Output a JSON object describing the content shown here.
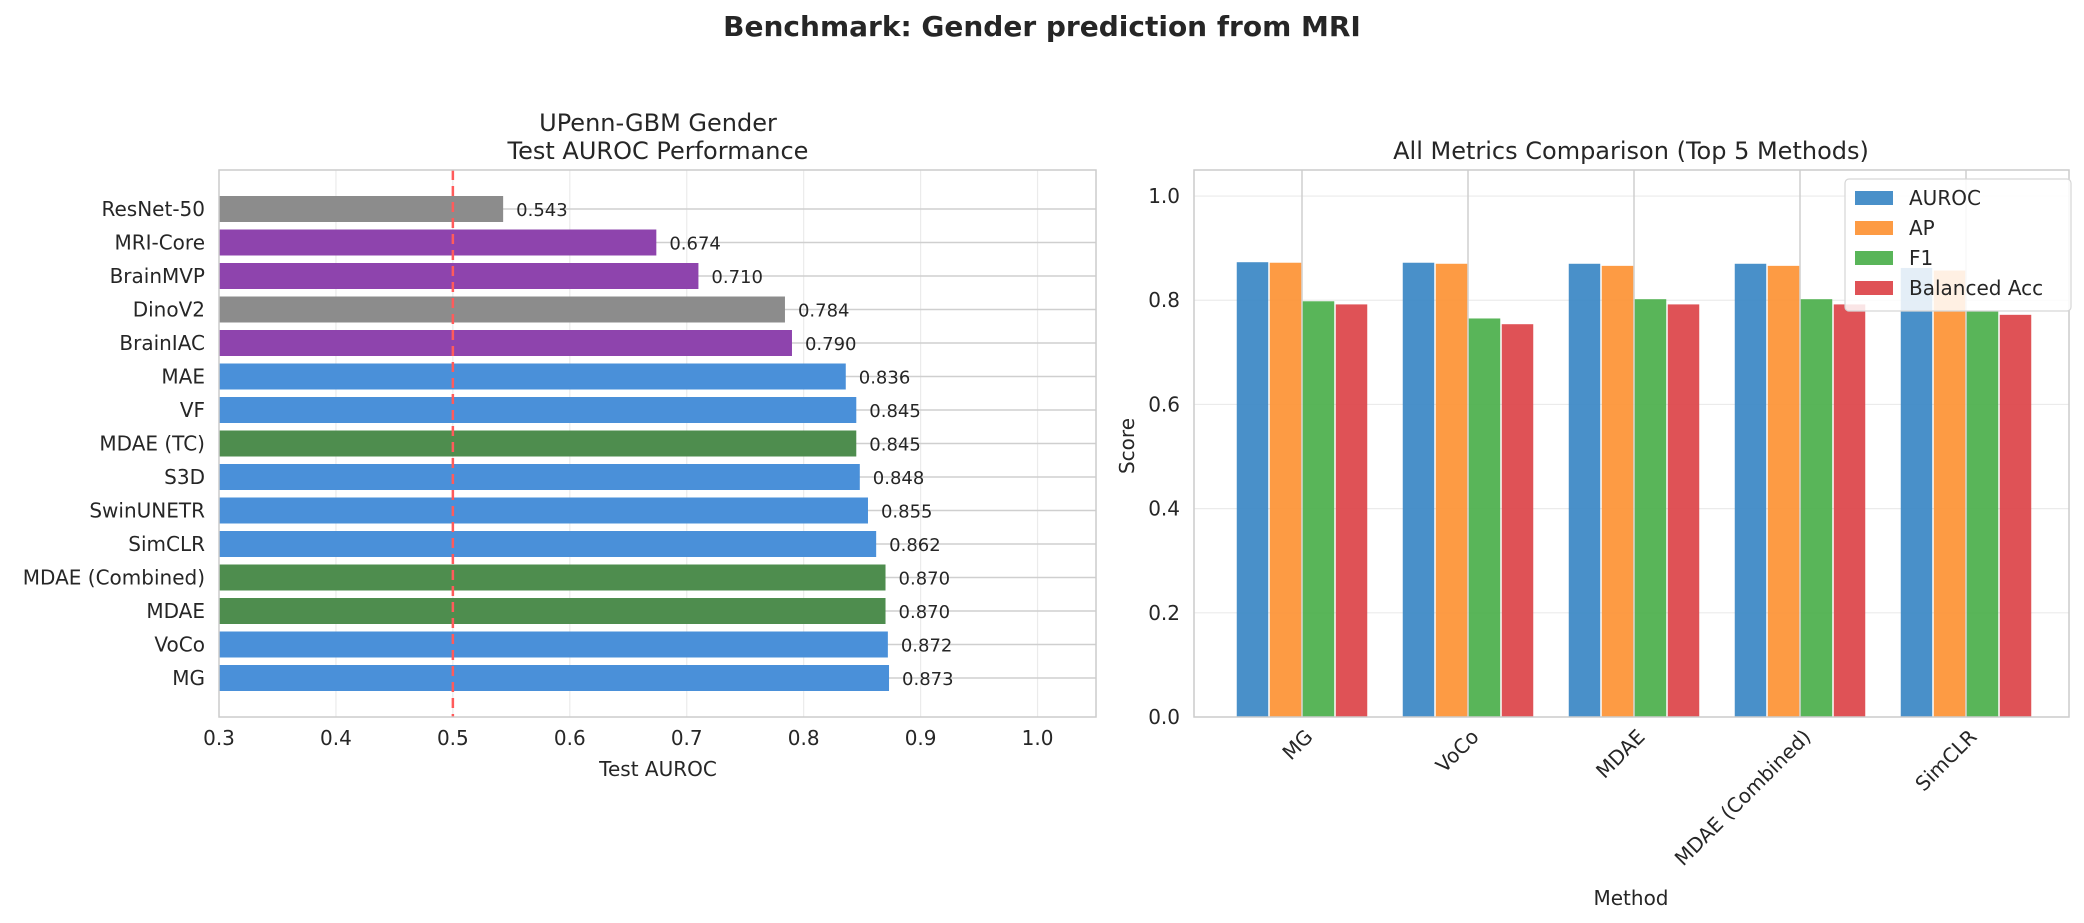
{
  "figure": {
    "title": "Benchmark: Gender prediction from MRI"
  },
  "chart_data": [
    {
      "type": "bar",
      "orientation": "horizontal",
      "title": "UPenn-GBM Gender\nTest AUROC Performance",
      "xlabel": "Test AUROC",
      "ylabel": "",
      "xlim": [
        0.3,
        1.05
      ],
      "xticks": [
        0.3,
        0.4,
        0.5,
        0.6,
        0.7,
        0.8,
        0.9,
        1.0
      ],
      "xtick_labels": [
        "0.3",
        "0.4",
        "0.5",
        "0.6",
        "0.7",
        "0.8",
        "0.9",
        "1.0"
      ],
      "grid": true,
      "reference_line": {
        "x": 0.5,
        "color": "#ff5b5b",
        "style": "dashed"
      },
      "categories": [
        "MG",
        "VoCo",
        "MDAE",
        "MDAE (Combined)",
        "SimCLR",
        "SwinUNETR",
        "S3D",
        "MDAE (TC)",
        "VF",
        "MAE",
        "BrainIAC",
        "DinoV2",
        "BrainMVP",
        "MRI-Core",
        "ResNet-50"
      ],
      "values": [
        0.873,
        0.872,
        0.87,
        0.87,
        0.862,
        0.855,
        0.848,
        0.845,
        0.845,
        0.836,
        0.79,
        0.784,
        0.71,
        0.674,
        0.543
      ],
      "value_labels": [
        "0.873",
        "0.872",
        "0.870",
        "0.870",
        "0.862",
        "0.855",
        "0.848",
        "0.845",
        "0.845",
        "0.836",
        "0.790",
        "0.784",
        "0.710",
        "0.674",
        "0.543"
      ],
      "colors": [
        "#4a90d9",
        "#4a90d9",
        "#4e8d4e",
        "#4e8d4e",
        "#4a90d9",
        "#4a90d9",
        "#4a90d9",
        "#4e8d4e",
        "#4a90d9",
        "#4a90d9",
        "#8e44ad",
        "#8c8c8c",
        "#8e44ad",
        "#8e44ad",
        "#8c8c8c"
      ]
    },
    {
      "type": "bar",
      "orientation": "vertical",
      "title": "All Metrics Comparison (Top 5 Methods)",
      "xlabel": "Method",
      "ylabel": "Score",
      "ylim": [
        0,
        1.05
      ],
      "yticks": [
        0,
        0.2,
        0.4,
        0.6,
        0.8,
        1.0
      ],
      "ytick_labels": [
        "0.0",
        "0.2",
        "0.4",
        "0.6",
        "0.8",
        "1.0"
      ],
      "grid": true,
      "legend_position": "top-right",
      "categories": [
        "MG",
        "VoCo",
        "MDAE",
        "MDAE (Combined)",
        "SimCLR"
      ],
      "series": [
        {
          "name": "AUROC",
          "color": "#3a87c4",
          "values": [
            0.873,
            0.872,
            0.87,
            0.87,
            0.862
          ]
        },
        {
          "name": "AP",
          "color": "#fd9234",
          "values": [
            0.872,
            0.87,
            0.866,
            0.866,
            0.857
          ]
        },
        {
          "name": "F1",
          "color": "#4baf4b",
          "values": [
            0.798,
            0.765,
            0.802,
            0.802,
            0.78
          ]
        },
        {
          "name": "Balanced Acc",
          "color": "#dc4348",
          "values": [
            0.792,
            0.754,
            0.792,
            0.792,
            0.772
          ]
        }
      ]
    }
  ]
}
